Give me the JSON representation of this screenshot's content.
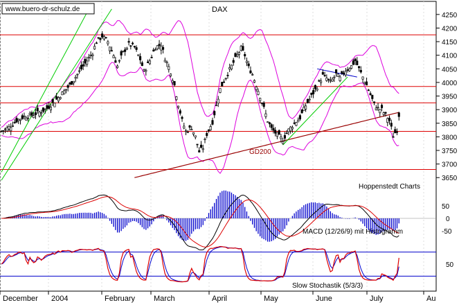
{
  "chart_data": {
    "type": "candlestick",
    "title": "DAX",
    "watermark": "www.buero-dr-schulz.de",
    "source": "Hoppenstedt Charts",
    "price_axis": {
      "ticks": [
        "4250",
        "4200",
        "4150",
        "4100",
        "4050",
        "4000",
        "3950",
        "3900",
        "3850",
        "3800",
        "3750",
        "3700",
        "3650"
      ],
      "ylim": [
        3620,
        4270
      ]
    },
    "x_labels": [
      "December",
      "2004",
      "February",
      "March",
      "April",
      "May",
      "June",
      "July",
      "Au"
    ],
    "horizontal_lines": [
      4175,
      3985,
      3925,
      3820,
      3680
    ],
    "moving_average_label": "GD200",
    "price_path": [
      [
        0,
        3820
      ],
      [
        4,
        3835
      ],
      [
        8,
        3860
      ],
      [
        12,
        3875
      ],
      [
        16,
        3880
      ],
      [
        20,
        3890
      ],
      [
        24,
        3905
      ],
      [
        28,
        3930
      ],
      [
        32,
        3960
      ],
      [
        36,
        3990
      ],
      [
        40,
        4030
      ],
      [
        44,
        4070
      ],
      [
        48,
        4110
      ],
      [
        50,
        4150
      ],
      [
        53,
        4170
      ],
      [
        56,
        4150
      ],
      [
        59,
        4100
      ],
      [
        61,
        4060
      ],
      [
        64,
        4110
      ],
      [
        67,
        4140
      ],
      [
        70,
        4130
      ],
      [
        73,
        4085
      ],
      [
        75,
        4040
      ],
      [
        78,
        4080
      ],
      [
        81,
        4130
      ],
      [
        84,
        4140
      ],
      [
        86,
        4090
      ],
      [
        89,
        4040
      ],
      [
        91,
        3990
      ],
      [
        93,
        3920
      ],
      [
        95,
        3860
      ],
      [
        97,
        3820
      ],
      [
        100,
        3835
      ],
      [
        102,
        3800
      ],
      [
        104,
        3745
      ],
      [
        106,
        3760
      ],
      [
        108,
        3810
      ],
      [
        111,
        3855
      ],
      [
        113,
        3915
      ],
      [
        115,
        3975
      ],
      [
        118,
        4020
      ],
      [
        121,
        4060
      ],
      [
        124,
        4100
      ],
      [
        126,
        4125
      ],
      [
        128,
        4100
      ],
      [
        130,
        4055
      ],
      [
        132,
        4030
      ],
      [
        134,
        3990
      ],
      [
        136,
        3950
      ],
      [
        138,
        3905
      ],
      [
        140,
        3860
      ],
      [
        142,
        3830
      ],
      [
        144,
        3815
      ],
      [
        146,
        3800
      ],
      [
        148,
        3790
      ],
      [
        151,
        3825
      ],
      [
        154,
        3850
      ],
      [
        157,
        3870
      ],
      [
        160,
        3915
      ],
      [
        163,
        3950
      ],
      [
        166,
        3985
      ],
      [
        169,
        4025
      ],
      [
        171,
        4015
      ],
      [
        173,
        4000
      ],
      [
        176,
        4030
      ],
      [
        178,
        4015
      ],
      [
        181,
        4045
      ],
      [
        184,
        4060
      ],
      [
        186,
        4080
      ],
      [
        188,
        4050
      ],
      [
        190,
        4020
      ],
      [
        192,
        3990
      ],
      [
        194,
        3955
      ],
      [
        196,
        3920
      ],
      [
        198,
        3905
      ],
      [
        200,
        3900
      ],
      [
        202,
        3880
      ],
      [
        204,
        3860
      ],
      [
        206,
        3805
      ],
      [
        208,
        3825
      ],
      [
        209,
        3880
      ]
    ],
    "x_domain": [
      0,
      214
    ],
    "macd": {
      "label": "MACD (12/26/9) mit Histogramm",
      "ticks": [
        "50",
        "0",
        "-50"
      ],
      "ylim": [
        -70,
        70
      ]
    },
    "stochastic": {
      "label": "Slow Stochastik (5/3/3)",
      "ticks": [
        "50"
      ],
      "ylim": [
        0,
        100
      ],
      "levels": [
        80,
        20
      ]
    }
  }
}
